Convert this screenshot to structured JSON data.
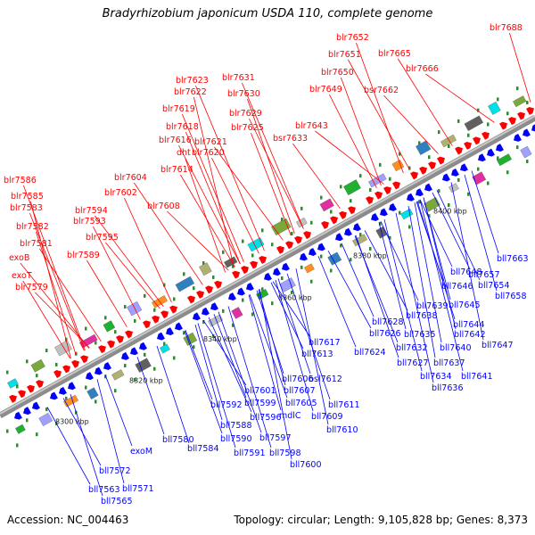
{
  "title": "Bradyrhizobium japonicum USDA 110, complete genome",
  "accession": "Accession: NC_004463",
  "topology": "Topology: circular; Length: 9,105,828 bp; Genes: 8,373",
  "colors": {
    "forward": "#ff0000",
    "reverse": "#0000ff",
    "backbone": "#9a9a9a",
    "tick": "#2e8b2e"
  },
  "kbp_labels": [
    "8300 kbp",
    "8320 kbp",
    "8340 kbp",
    "8360 kbp",
    "8380 kbp",
    "8400 kbp"
  ],
  "upper_labels": [
    "blr7688",
    "blr7652",
    "blr7665",
    "blr7651",
    "blr7666",
    "blr7650",
    "blr7649",
    "bsr7662",
    "blr7631",
    "blr7623",
    "blr7622",
    "blr7630",
    "blr7629",
    "blr7619",
    "blr7643",
    "blr7625",
    "bsr7633",
    "blr7618",
    "blr7616",
    "blr7621",
    "dht",
    "blr7620",
    "blr7614",
    "blr7586",
    "blr7604",
    "blr7585",
    "blr7602",
    "blr7583",
    "blr7608",
    "blr7594",
    "blr7582",
    "blr7593",
    "blr7595",
    "blr7581",
    "exoB",
    "blr7589",
    "exoT",
    "blr7579"
  ],
  "lower_labels": [
    "bll7663",
    "bll7648",
    "bll7657",
    "bll7654",
    "bll7646",
    "bll7658",
    "bll7639",
    "bll7638",
    "bll7645",
    "bll7628",
    "bll7644",
    "bll7626",
    "bll7635",
    "bll7642",
    "bll7617",
    "bll7632",
    "bll7640",
    "bll7647",
    "bll7624",
    "bll7627",
    "bll7637",
    "bll7613",
    "bll7634",
    "bll7641",
    "bll7606",
    "bsl7612",
    "bll7636",
    "bll7601",
    "bll7607",
    "bll7599",
    "bll7605",
    "bll7611",
    "bll7592",
    "mdlC",
    "bll7609",
    "bll7596",
    "bll7588",
    "bll7610",
    "bll7590",
    "bll7597",
    "bll7580",
    "bll7584",
    "bll7591",
    "bll7598",
    "exoM",
    "bll7600",
    "bll7572",
    "bll7563",
    "bll7571",
    "bll7565"
  ]
}
